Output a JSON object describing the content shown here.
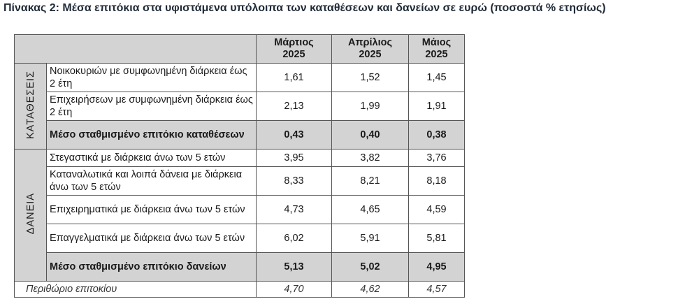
{
  "title": "Πίνακας 2: Μέσα επιτόκια στα υφιστάμενα υπόλοιπα των καταθέσεων και δανείων σε ευρώ (ποσοστά % ετησίως)",
  "columns": [
    {
      "line1": "Μάρτιος",
      "line2": "2025"
    },
    {
      "line1": "Απρίλιος",
      "line2": "2025"
    },
    {
      "line1": "Μάιος",
      "line2": "2025"
    }
  ],
  "deposits": {
    "group_label": "ΚΑΤΑΘΕΣΕΙΣ",
    "rows": [
      {
        "label": "Νοικοκυριών με συμφωνημένη διάρκεια έως 2 έτη",
        "values": [
          "1,61",
          "1,52",
          "1,45"
        ]
      },
      {
        "label": "Επιχειρήσεων με συμφωνημένη διάρκεια έως 2 έτη",
        "values": [
          "2,13",
          "1,99",
          "1,91"
        ]
      }
    ],
    "total": {
      "label": "Μέσο σταθμισμένο επιτόκιο καταθέσεων",
      "values": [
        "0,43",
        "0,40",
        "0,38"
      ]
    }
  },
  "loans": {
    "group_label": "ΔΑΝΕΙΑ",
    "rows": [
      {
        "label": "Στεγαστικά με διάρκεια άνω των 5 ετών",
        "values": [
          "3,95",
          "3,82",
          "3,76"
        ]
      },
      {
        "label": "Καταναλωτικά και λοιπά δάνεια με διάρκεια άνω των 5 ετών",
        "values": [
          "8,33",
          "8,21",
          "8,18"
        ]
      },
      {
        "label": "Επιχειρηματικά με διάρκεια άνω των 5 ετών",
        "values": [
          "4,73",
          "4,65",
          "4,59"
        ]
      },
      {
        "label": "Επαγγελματικά με διάρκεια άνω των 5 ετών",
        "values": [
          "6,02",
          "5,91",
          "5,81"
        ]
      }
    ],
    "total": {
      "label": "Μέσο σταθμισμένο επιτόκιο δανείων",
      "values": [
        "5,13",
        "5,02",
        "4,95"
      ]
    }
  },
  "margin": {
    "label": "Περιθώριο επιτοκίου",
    "values": [
      "4,70",
      "4,62",
      "4,57"
    ]
  }
}
